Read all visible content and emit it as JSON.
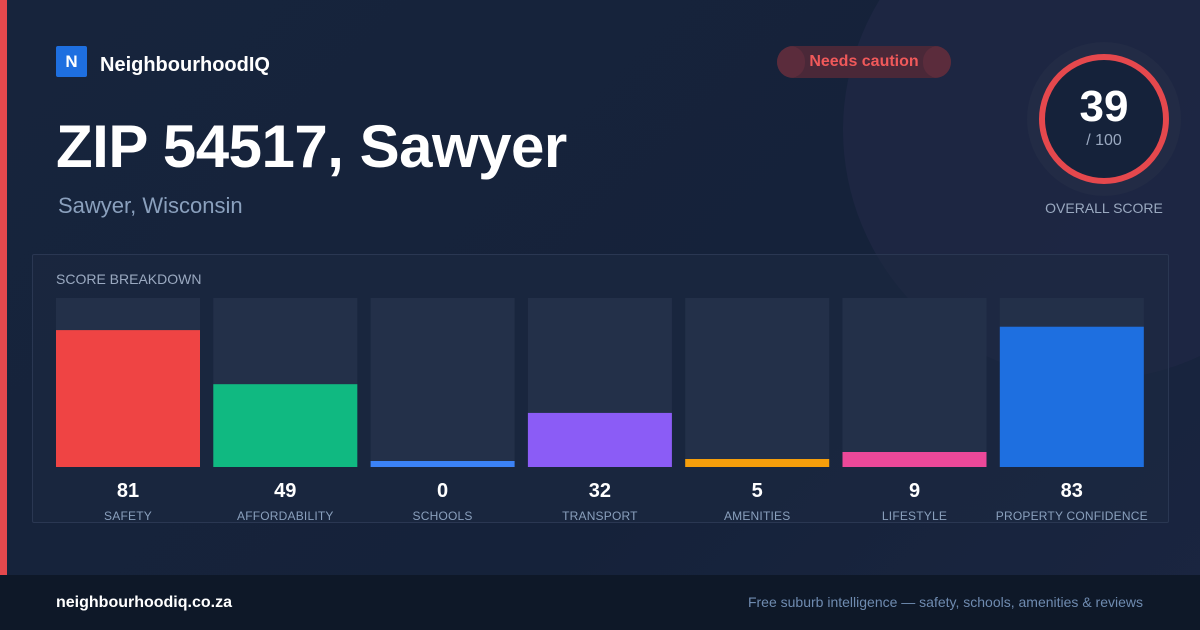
{
  "brand": {
    "logo_letter": "N",
    "name": "NeighbourhoodIQ"
  },
  "badge": {
    "label": "Needs caution"
  },
  "location": {
    "title": "ZIP 54517, Sawyer",
    "subtitle": "Sawyer, Wisconsin"
  },
  "overall": {
    "score": "39",
    "max_label": "/ 100",
    "label": "OVERALL SCORE",
    "value": 39,
    "max": 100
  },
  "colors": {
    "accent": "#e5484d",
    "safety": "#ef4444",
    "affordability": "#10b981",
    "schools": "#3b82f6",
    "transport": "#8b5cf6",
    "amenities": "#f59e0b",
    "lifestyle": "#ec4899",
    "property_confidence": "#1e6fe0",
    "track": "#233049"
  },
  "chart_data": {
    "type": "bar",
    "title": "SCORE BREAKDOWN",
    "ylim": [
      0,
      100
    ],
    "categories": [
      "SAFETY",
      "AFFORDABILITY",
      "SCHOOLS",
      "TRANSPORT",
      "AMENITIES",
      "LIFESTYLE",
      "PROPERTY CONFIDENCE"
    ],
    "values": [
      81,
      49,
      0,
      32,
      5,
      9,
      83
    ],
    "value_labels": [
      "81",
      "49",
      "0",
      "32",
      "5",
      "9",
      "83"
    ],
    "bar_colors": [
      "#ef4444",
      "#10b981",
      "#3b82f6",
      "#8b5cf6",
      "#f59e0b",
      "#ec4899",
      "#1e6fe0"
    ],
    "grid": false
  },
  "footer": {
    "domain": "neighbourhoodiq.co.za",
    "tagline": "Free suburb intelligence — safety, schools, amenities & reviews"
  }
}
